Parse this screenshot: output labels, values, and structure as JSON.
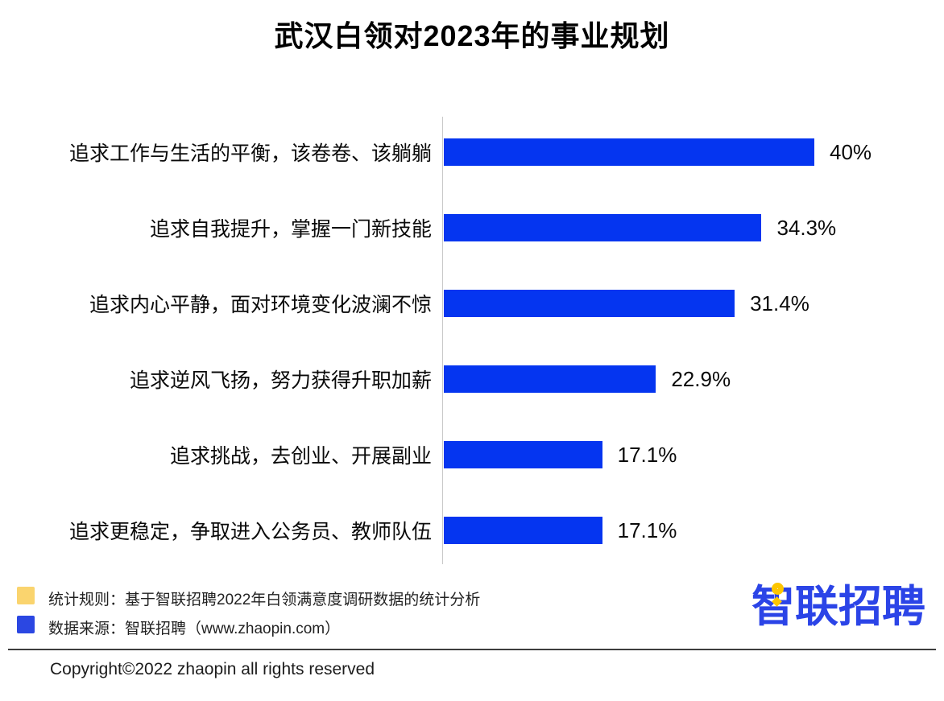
{
  "title": "武汉白领对2023年的事业规划",
  "chart_data": {
    "type": "bar",
    "orientation": "horizontal",
    "title": "武汉白领对2023年的事业规划",
    "categories": [
      "追求工作与生活的平衡，该卷卷、该躺躺",
      "追求自我提升，掌握一门新技能",
      "追求内心平静，面对环境变化波澜不惊",
      "追求逆风飞扬，努力获得升职加薪",
      "追求挑战，去创业、开展副业",
      "追求更稳定，争取进入公务员、教师队伍"
    ],
    "values": [
      40,
      34.3,
      31.4,
      22.9,
      17.1,
      17.1
    ],
    "value_labels": [
      "40%",
      "34.3%",
      "31.4%",
      "22.9%",
      "17.1%",
      "17.1%"
    ],
    "xlabel": "",
    "ylabel": "",
    "xlim": [
      0,
      45
    ],
    "grid": false,
    "legend_position": "none",
    "bar_color": "#0535f0",
    "axis_line_color": "#c9c9c9"
  },
  "footer": {
    "notes": [
      {
        "swatch_color": "#fad46e",
        "text": "统计规则：基于智联招聘2022年白领满意度调研数据的统计分析"
      },
      {
        "swatch_color": "#2b47e2",
        "text": "数据来源：智联招聘（www.zhaopin.com）"
      }
    ],
    "logo_text": "智联招聘",
    "logo_color": "#2b44e7",
    "logo_pin_color": "#fdc600",
    "copyright": "Copyright©2022 zhaopin all rights reserved"
  }
}
